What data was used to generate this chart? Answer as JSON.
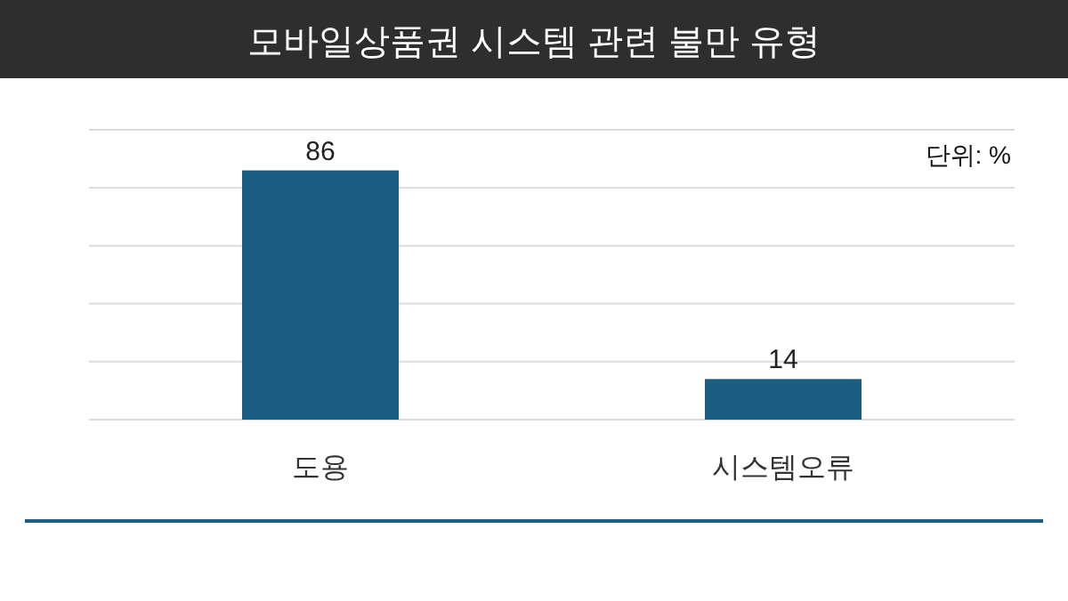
{
  "chart_data": {
    "type": "bar",
    "title": "모바일상품권 시스템 관련 불만 유형",
    "categories": [
      "도용",
      "시스템오류"
    ],
    "values": [
      86,
      14
    ],
    "color": "#1b5e82",
    "ylim": [
      0,
      100
    ],
    "yticks": [
      {
        "value": 0,
        "label": null
      },
      {
        "value": 20,
        "label": null
      },
      {
        "value": 40,
        "label": null
      },
      {
        "value": 60,
        "label": null
      },
      {
        "value": 80,
        "label": null
      },
      {
        "value": 100,
        "label": null
      }
    ],
    "grid": "y",
    "data_labels": true,
    "tick_labels": "x",
    "annotations": [
      "단위: %"
    ]
  }
}
